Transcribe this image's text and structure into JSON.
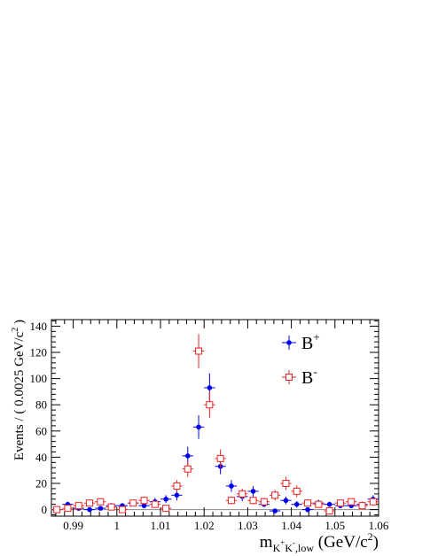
{
  "chart_data": {
    "type": "scatter",
    "xlabel": {
      "main": "m",
      "sub": "K",
      "sub_sup1": "+",
      "sub_mid": "K",
      "sub_sup2": "-",
      "sub_tail": ",low",
      "unit_open": " (GeV/c",
      "unit_sup": "2",
      "unit_close": ")"
    },
    "ylabel": {
      "main": "Events / ( 0.0025 GeV/c",
      "sup": "2",
      "close": " )"
    },
    "xlim": [
      0.985,
      1.06
    ],
    "ylim": [
      -5,
      145
    ],
    "x_ticks": [
      0.99,
      1.0,
      1.01,
      1.02,
      1.03,
      1.04,
      1.05,
      1.06
    ],
    "x_tick_labels": [
      "0.99",
      "1",
      "1.01",
      "1.02",
      "1.03",
      "1.04",
      "1.05",
      "1.06"
    ],
    "y_ticks": [
      0,
      20,
      40,
      60,
      80,
      100,
      120,
      140
    ],
    "y_tick_labels": [
      "0",
      "20",
      "40",
      "60",
      "80",
      "100",
      "120",
      "140"
    ],
    "bin_width": 0.0025,
    "zero_line": true,
    "legend_placement": "top-right",
    "series": [
      {
        "name": "B",
        "sup": "+",
        "color": "#0000ee",
        "marker": "filled-circle",
        "x": [
          0.98625,
          0.98875,
          0.99125,
          0.99375,
          0.99625,
          0.99875,
          1.00125,
          1.00375,
          1.00625,
          1.00875,
          1.01125,
          1.01375,
          1.01625,
          1.01875,
          1.02125,
          1.02375,
          1.02625,
          1.02875,
          1.03125,
          1.03375,
          1.03625,
          1.03875,
          1.04125,
          1.04375,
          1.04625,
          1.04875,
          1.05125,
          1.05375,
          1.05625,
          1.05875
        ],
        "y": [
          0,
          4,
          1,
          0,
          1,
          3,
          3,
          5,
          3,
          6,
          8,
          11,
          41,
          63,
          93,
          33,
          18,
          10,
          14,
          4,
          -1,
          7,
          4,
          0,
          5,
          4,
          3,
          3,
          4,
          8
        ],
        "err": [
          1,
          2,
          1.5,
          1,
          1.5,
          2,
          2,
          2.5,
          2,
          3,
          3,
          4,
          7,
          9,
          11,
          6,
          4.5,
          3.5,
          4,
          2,
          1,
          3,
          2.5,
          1,
          2.5,
          2,
          2,
          2,
          2,
          3
        ]
      },
      {
        "name": "B",
        "sup": "-",
        "color": "#ee2222",
        "marker": "open-square",
        "x": [
          0.98625,
          0.98875,
          0.99125,
          0.99375,
          0.99625,
          0.99875,
          1.00125,
          1.00375,
          1.00625,
          1.00875,
          1.01125,
          1.01375,
          1.01625,
          1.01875,
          1.02125,
          1.02375,
          1.02625,
          1.02875,
          1.03125,
          1.03375,
          1.03625,
          1.03875,
          1.04125,
          1.04375,
          1.04625,
          1.04875,
          1.05125,
          1.05375,
          1.05625,
          1.05875
        ],
        "y": [
          0,
          1,
          3,
          5,
          6,
          2,
          0,
          5,
          7,
          4,
          1,
          18,
          31,
          121,
          80,
          39,
          7,
          12,
          7,
          6,
          11,
          20,
          14,
          5,
          4,
          -1,
          5,
          6,
          3,
          6
        ],
        "err": [
          1,
          1.5,
          2,
          2.5,
          2.5,
          1.5,
          1,
          2.5,
          3,
          2,
          1.5,
          4.5,
          6,
          13,
          10,
          7,
          3,
          4,
          3,
          3,
          4,
          5,
          4.5,
          2.5,
          2,
          1,
          2.5,
          2.5,
          2,
          3
        ]
      }
    ]
  }
}
